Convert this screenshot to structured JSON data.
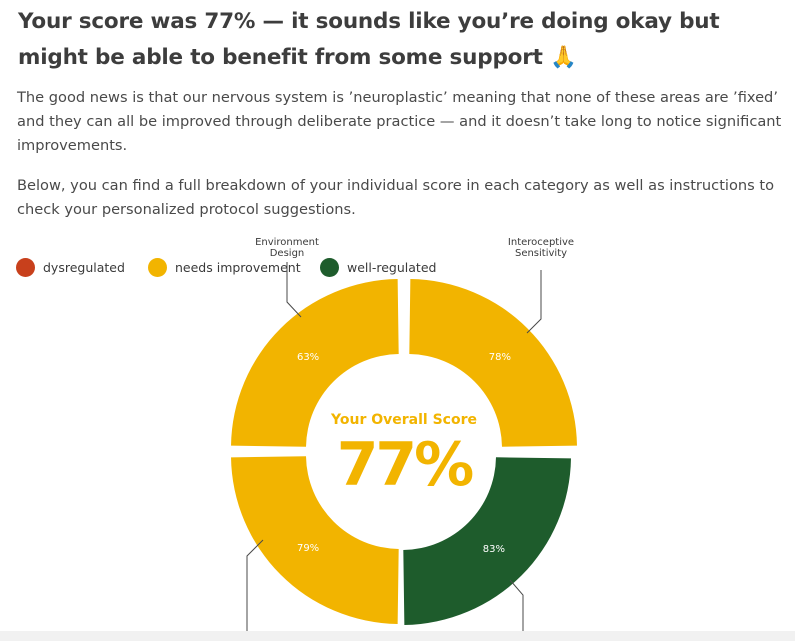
{
  "headline": {
    "text": "Your score was 77% — it sounds like you’re doing okay but might be able to benefit from some support",
    "emoji": "🙏"
  },
  "paragraphs": [
    "The good news is that our nervous system is ’neuroplastic’ meaning that none of these areas are ’fixed’ and they can all be improved through deliberate practice — and it doesn’t take long to notice significant improvements.",
    "Below, you can find a full breakdown of your individual score in each category as well as instructions to check your personalized protocol suggestions."
  ],
  "legend": [
    {
      "label": "dysregulated",
      "color": "#c8401c"
    },
    {
      "label": "needs improvement",
      "color": "#f2b400"
    },
    {
      "label": "well-regulated",
      "color": "#1e5c2c"
    }
  ],
  "chart_data": {
    "type": "pie",
    "variant": "donut",
    "center_title": "Your Overall Score",
    "center_value": "77%",
    "slices": [
      {
        "name": "Interoceptive Sensitivity",
        "value": 78,
        "label": "78%",
        "status": "needs improvement",
        "color": "#f2b400"
      },
      {
        "name": "",
        "value": 83,
        "label": "83%",
        "status": "well-regulated",
        "color": "#1e5c2c"
      },
      {
        "name": "",
        "value": 79,
        "label": "79%",
        "status": "needs improvement",
        "color": "#f2b400"
      },
      {
        "name": "Environment Design",
        "value": 63,
        "label": "63%",
        "status": "needs improvement",
        "color": "#f2b400"
      }
    ],
    "segments_equal_width": true
  }
}
